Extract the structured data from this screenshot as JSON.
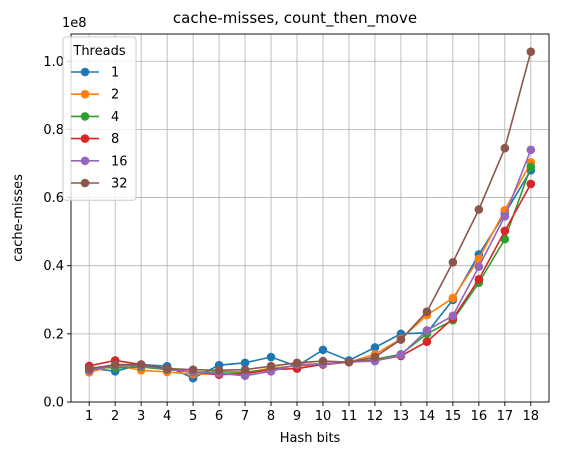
{
  "chart_data": {
    "type": "line",
    "title": "cache-misses, count_then_move",
    "xlabel": "Hash bits",
    "ylabel": "cache-misses",
    "offset_label": "1e8",
    "x": [
      1,
      2,
      3,
      4,
      5,
      6,
      7,
      8,
      9,
      10,
      11,
      12,
      13,
      14,
      15,
      16,
      17,
      18
    ],
    "x_ticks": [
      "1",
      "2",
      "3",
      "4",
      "5",
      "6",
      "7",
      "8",
      "9",
      "10",
      "11",
      "12",
      "13",
      "14",
      "15",
      "16",
      "17",
      "18"
    ],
    "y_ticks": [
      0.0,
      0.2,
      0.4,
      0.6,
      0.8,
      1.0
    ],
    "y_tick_labels": [
      "0.0",
      "0.2",
      "0.4",
      "0.6",
      "0.8",
      "1.0"
    ],
    "xlim": [
      0.3,
      18.7
    ],
    "ylim": [
      0.0,
      1.08
    ],
    "y_scale_note": "values in units of 1e8",
    "grid": true,
    "legend": {
      "title": "Threads",
      "placement": "top-left"
    },
    "series": [
      {
        "name": "1",
        "color": "#1f77b4",
        "values": [
          0.1,
          0.09,
          0.11,
          0.105,
          0.07,
          0.108,
          0.115,
          0.132,
          0.105,
          0.153,
          0.122,
          0.16,
          0.2,
          0.203,
          0.3,
          0.433,
          0.553,
          0.68
        ]
      },
      {
        "name": "2",
        "color": "#ff7f0e",
        "values": [
          0.087,
          0.108,
          0.093,
          0.088,
          0.082,
          0.082,
          0.085,
          0.1,
          0.105,
          0.11,
          0.117,
          0.14,
          0.185,
          0.255,
          0.305,
          0.42,
          0.563,
          0.703
        ]
      },
      {
        "name": "4",
        "color": "#2ca02c",
        "values": [
          0.102,
          0.1,
          0.103,
          0.095,
          0.088,
          0.088,
          0.088,
          0.095,
          0.108,
          0.112,
          0.117,
          0.125,
          0.14,
          0.2,
          0.24,
          0.35,
          0.478,
          0.69
        ]
      },
      {
        "name": "8",
        "color": "#d62728",
        "values": [
          0.106,
          0.122,
          0.11,
          0.097,
          0.088,
          0.08,
          0.083,
          0.095,
          0.098,
          0.11,
          0.117,
          0.122,
          0.135,
          0.177,
          0.245,
          0.36,
          0.502,
          0.64
        ]
      },
      {
        "name": "16",
        "color": "#9467bd",
        "values": [
          0.092,
          0.108,
          0.106,
          0.097,
          0.087,
          0.084,
          0.077,
          0.09,
          0.11,
          0.112,
          0.117,
          0.12,
          0.138,
          0.21,
          0.253,
          0.397,
          0.545,
          0.74
        ]
      },
      {
        "name": "32",
        "color": "#8c564b",
        "values": [
          0.097,
          0.11,
          0.11,
          0.098,
          0.095,
          0.093,
          0.095,
          0.105,
          0.115,
          0.12,
          0.117,
          0.132,
          0.183,
          0.265,
          0.41,
          0.565,
          0.745,
          1.028
        ]
      }
    ]
  }
}
